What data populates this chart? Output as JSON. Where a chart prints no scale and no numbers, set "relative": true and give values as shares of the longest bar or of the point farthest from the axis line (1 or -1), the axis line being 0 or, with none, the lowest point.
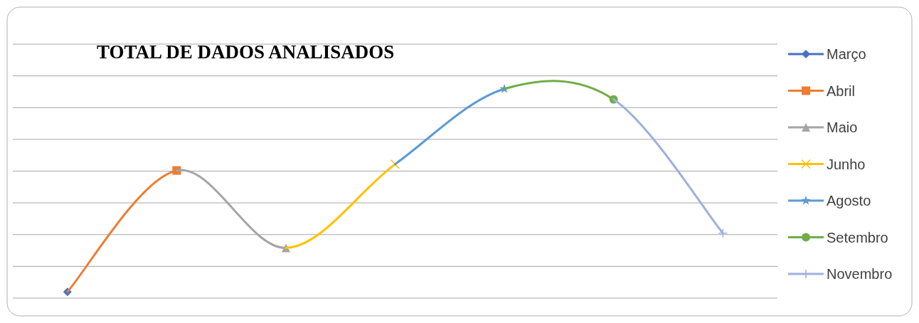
{
  "chart_data": {
    "type": "line",
    "title": "TOTAL DE DADOS ANALISADOS",
    "relative": true,
    "grid": true,
    "legend": "right",
    "categories": [
      null,
      null,
      null,
      null,
      null,
      null,
      null
    ],
    "series": [
      {
        "name": "Março",
        "color": "#4472c4",
        "marker": "diamond",
        "values": [
          0.03,
          null,
          null,
          null,
          null,
          null,
          null
        ]
      },
      {
        "name": "Abril",
        "color": "#ed7d31",
        "marker": "square",
        "values": [
          0.03,
          0.61,
          null,
          null,
          null,
          null,
          null
        ]
      },
      {
        "name": "Maio",
        "color": "#a5a5a5",
        "marker": "triangle",
        "values": [
          null,
          0.61,
          0.24,
          null,
          null,
          null,
          null
        ]
      },
      {
        "name": "Junho",
        "color": "#ffc000",
        "marker": "cross",
        "values": [
          null,
          null,
          0.24,
          0.64,
          null,
          null,
          null
        ]
      },
      {
        "name": "Agosto",
        "color": "#5b9bd5",
        "marker": "star",
        "values": [
          null,
          null,
          null,
          0.64,
          1,
          null,
          null
        ]
      },
      {
        "name": "Setembro",
        "color": "#70ad47",
        "marker": "circle",
        "values": [
          null,
          null,
          null,
          null,
          1,
          0.95,
          null
        ]
      },
      {
        "name": "Novembro",
        "color": "#9eb0dd",
        "marker": "plus",
        "values": [
          null,
          null,
          null,
          null,
          null,
          0.95,
          0.31
        ]
      }
    ]
  }
}
